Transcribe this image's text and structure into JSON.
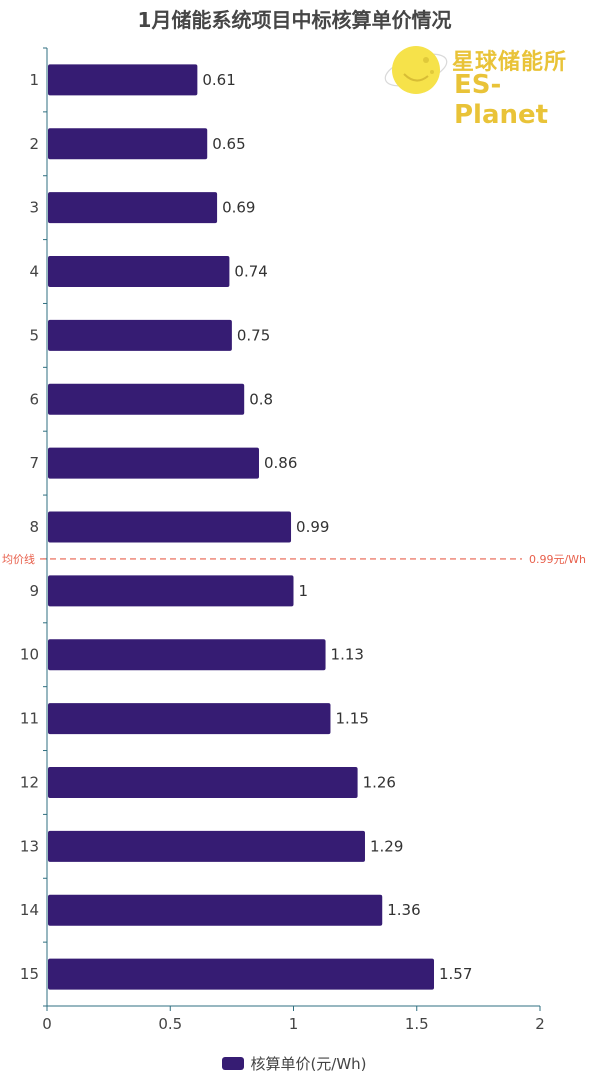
{
  "chart_data": {
    "type": "bar",
    "orientation": "horizontal",
    "title": "1月储能系统项目中标核算单价情况",
    "categories": [
      "1",
      "2",
      "3",
      "4",
      "5",
      "6",
      "7",
      "8",
      "9",
      "10",
      "11",
      "12",
      "13",
      "14",
      "15"
    ],
    "series": [
      {
        "name": "核算单价(元/Wh)",
        "values": [
          0.61,
          0.65,
          0.69,
          0.74,
          0.75,
          0.8,
          0.86,
          0.99,
          1,
          1.13,
          1.15,
          1.26,
          1.29,
          1.36,
          1.57
        ]
      }
    ],
    "xlim": [
      0,
      2
    ],
    "x_ticks": [
      "0",
      "0.5",
      "1",
      "1.5",
      "2"
    ],
    "grid": false,
    "legend_position": "bottom",
    "average_line": {
      "label": "均价线",
      "value_label": "0.99元/Wh",
      "value": 0.99,
      "between_categories": [
        "8",
        "9"
      ]
    }
  },
  "logo": {
    "text_cn": "星球储能所",
    "text_en": "ES-Planet"
  },
  "colors": {
    "bar": "#361c73",
    "axis": "#2f6f80",
    "average_line": "#e8604c",
    "logo": "#e9c338"
  }
}
